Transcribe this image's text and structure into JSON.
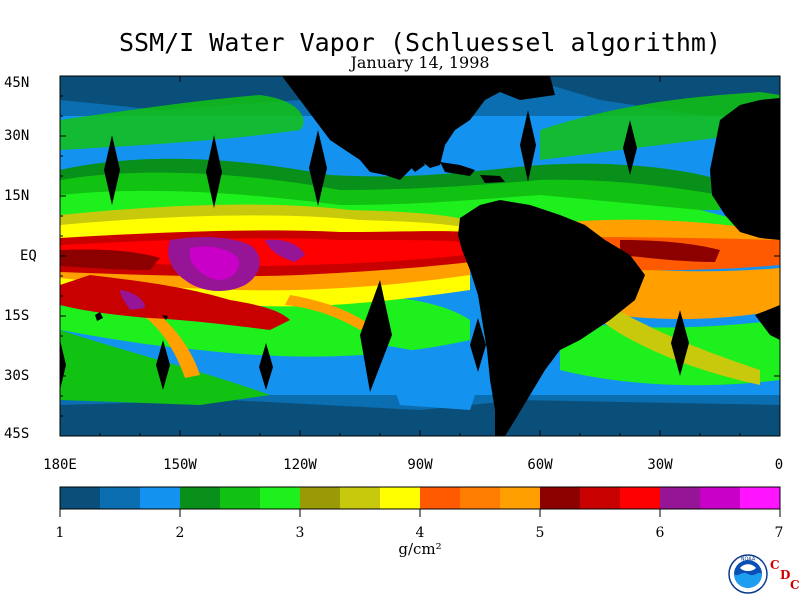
{
  "title": "SSM/I Water Vapor (Schluessel algorithm)",
  "date": "January 14, 1998",
  "lat_labels": [
    "45N",
    "30N",
    "15N",
    "EQ",
    "15S",
    "30S",
    "45S"
  ],
  "lon_labels": [
    "180E",
    "150W",
    "120W",
    "90W",
    "60W",
    "30W",
    "0"
  ],
  "colorbar": {
    "ticks": [
      "1",
      "2",
      "3",
      "4",
      "5",
      "6",
      "7"
    ],
    "unit": "g/cm²",
    "colors": [
      "#0a4f7a",
      "#0a6eb0",
      "#1492f0",
      "#08901a",
      "#12c212",
      "#1ef01e",
      "#9a9a06",
      "#c8c80c",
      "#ffff00",
      "#ff5a00",
      "#ff7d00",
      "#ffa000",
      "#8c0000",
      "#c80000",
      "#ff0000",
      "#961496",
      "#c800c8",
      "#ff14ff"
    ]
  },
  "logo": {
    "text": "NOAA",
    "cdc": [
      "C",
      "D",
      "C"
    ]
  }
}
